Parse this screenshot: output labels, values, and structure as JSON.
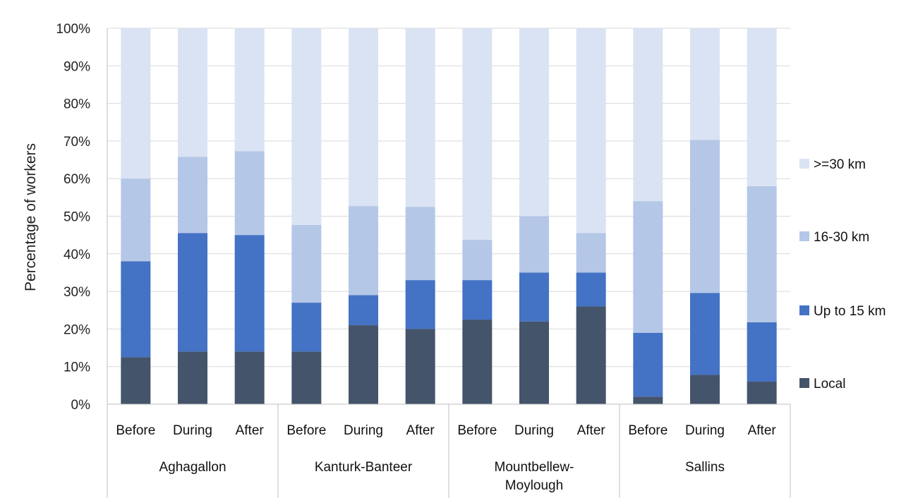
{
  "chart_data": {
    "type": "bar",
    "stacked": true,
    "ylabel": "Percentage of workers",
    "ylim": [
      0,
      100
    ],
    "yticks": [
      "0%",
      "10%",
      "20%",
      "30%",
      "40%",
      "50%",
      "60%",
      "70%",
      "80%",
      "90%",
      "100%"
    ],
    "grid": true,
    "legend_position": "right",
    "groups": [
      {
        "name": "Aghagallon",
        "categories": [
          "Before",
          "During",
          "After"
        ]
      },
      {
        "name": "Kanturk-Banteer",
        "categories": [
          "Before",
          "During",
          "After"
        ]
      },
      {
        "name": "Mountbellew-Moylough",
        "name_lines": [
          "Mountbellew-",
          "Moylough"
        ],
        "categories": [
          "Before",
          "During",
          "After"
        ]
      },
      {
        "name": "Sallins",
        "categories": [
          "Before",
          "During",
          "After"
        ]
      }
    ],
    "series": [
      {
        "name": "Local",
        "color": "#44546a",
        "values": [
          12.5,
          14,
          14,
          14,
          21,
          20,
          22.5,
          22,
          26,
          2,
          7.8,
          6
        ]
      },
      {
        "name": "Up to 15 km",
        "color": "#4472c4",
        "values": [
          25.5,
          31.5,
          31,
          13,
          8,
          13,
          10.5,
          13,
          9,
          17,
          21.8,
          15.8
        ]
      },
      {
        "name": "16-30 km",
        "color": "#b4c7e7",
        "values": [
          22,
          20.3,
          22.3,
          20.7,
          23.7,
          19.5,
          10.7,
          15,
          10.5,
          35,
          40.7,
          36.2
        ]
      },
      {
        "name": ">=30 km",
        "color": "#dae3f3",
        "values": [
          40,
          34.2,
          32.7,
          52.3,
          47.3,
          47.5,
          56.3,
          50,
          54.5,
          46,
          29.7,
          42
        ]
      }
    ],
    "legend_order": [
      ">=30 km",
      "16-30 km",
      "Up to 15 km",
      "Local"
    ]
  }
}
